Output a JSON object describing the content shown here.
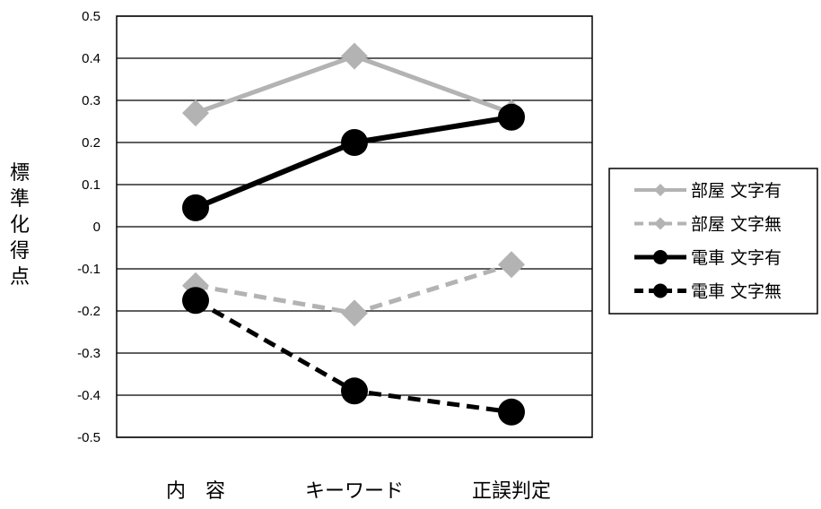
{
  "chart_data": {
    "type": "line",
    "title": "",
    "xlabel": "",
    "ylabel": "標準化得点",
    "ylim": [
      -0.5,
      0.5
    ],
    "y_ticks": [
      "0.5",
      "0.4",
      "0.3",
      "0.2",
      "0.1",
      "0",
      "-0.1",
      "-0.2",
      "-0.3",
      "-0.4",
      "-0.5"
    ],
    "categories": [
      "内　容",
      "キーワード",
      "正誤判定"
    ],
    "grid": true,
    "legend_position": "right",
    "series": [
      {
        "name": "部屋 文字有",
        "values": [
          0.27,
          0.405,
          0.27
        ],
        "color": "#b3b3b3",
        "marker": "diamond",
        "dash": "solid"
      },
      {
        "name": "部屋 文字無",
        "values": [
          -0.14,
          -0.205,
          -0.09
        ],
        "color": "#b3b3b3",
        "marker": "diamond",
        "dash": "dashed"
      },
      {
        "name": "電車 文字有",
        "values": [
          0.045,
          0.2,
          0.26
        ],
        "color": "#000000",
        "marker": "circle",
        "dash": "solid"
      },
      {
        "name": "電車 文字無",
        "values": [
          -0.175,
          -0.39,
          -0.44
        ],
        "color": "#000000",
        "marker": "circle",
        "dash": "dashed"
      }
    ]
  }
}
